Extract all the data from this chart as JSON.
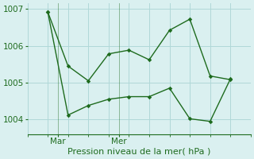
{
  "line1_x": [
    0,
    1,
    2,
    3,
    4,
    5,
    6,
    7,
    8,
    9
  ],
  "line1_y": [
    1006.92,
    1005.45,
    1005.05,
    1005.78,
    1005.88,
    1005.62,
    1006.42,
    1006.72,
    1005.18,
    1005.08
  ],
  "line2_x": [
    0,
    1,
    2,
    3,
    4,
    5,
    6,
    7,
    8,
    9
  ],
  "line2_y": [
    1006.92,
    1004.12,
    1004.38,
    1004.55,
    1004.62,
    1004.62,
    1004.85,
    1004.02,
    1003.95,
    1005.1
  ],
  "xtick_positions": [
    0.5,
    3.5
  ],
  "xtick_labels": [
    "Mar",
    "Mer"
  ],
  "vline_positions": [
    0.5,
    3.5
  ],
  "ytick_positions": [
    1004,
    1005,
    1006,
    1007
  ],
  "ylim": [
    1003.6,
    1007.15
  ],
  "xlim": [
    -0.3,
    9.3
  ],
  "xlabel": "Pression niveau de la mer( hPa )",
  "line_color": "#1e6b1e",
  "bg_color": "#daf0f0",
  "grid_color": "#b0d8d8",
  "xlabel_fontsize": 8,
  "tick_fontsize": 7.5
}
